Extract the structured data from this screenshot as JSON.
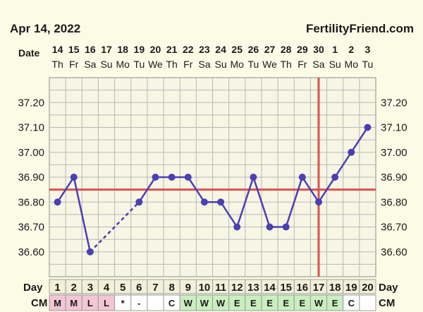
{
  "header": {
    "date": "Apr 14, 2022",
    "brand": "FertilityFriend.com"
  },
  "chart_data": {
    "type": "line",
    "row_labels": {
      "date": "Date",
      "day": "Day",
      "cm": "CM"
    },
    "dates": [
      "14",
      "15",
      "16",
      "17",
      "18",
      "19",
      "20",
      "21",
      "22",
      "23",
      "24",
      "25",
      "26",
      "27",
      "28",
      "29",
      "30",
      "1",
      "2",
      "3"
    ],
    "weekdays": [
      "Th",
      "Fr",
      "Sa",
      "Su",
      "Mo",
      "Tu",
      "We",
      "Th",
      "Fr",
      "Sa",
      "Su",
      "Mo",
      "Tu",
      "We",
      "Th",
      "Fr",
      "Sa",
      "Su",
      "Mo",
      "Tu"
    ],
    "days": [
      "1",
      "2",
      "3",
      "4",
      "5",
      "6",
      "7",
      "8",
      "9",
      "10",
      "11",
      "12",
      "13",
      "14",
      "15",
      "16",
      "17",
      "18",
      "19",
      "20"
    ],
    "cm": [
      "M",
      "M",
      "L",
      "L",
      "*",
      "-",
      "",
      "C",
      "W",
      "W",
      "W",
      "E",
      "E",
      "E",
      "E",
      "E",
      "W",
      "E",
      "C",
      ""
    ],
    "cm_colors": {
      "M": "#f2c6d6",
      "L": "#f2c6d6",
      "W": "#c9eec0",
      "E": "#c9eec0",
      "C": "#ffffff",
      "*": "#ffffff",
      "-": "#ffffff",
      "": "#ffffff"
    },
    "temperatures": [
      36.8,
      36.9,
      36.6,
      null,
      null,
      36.8,
      36.9,
      36.9,
      36.9,
      36.8,
      36.8,
      36.7,
      36.9,
      36.7,
      36.7,
      36.9,
      36.8,
      36.9,
      37.0,
      37.1
    ],
    "yticks": [
      "37.20",
      "37.10",
      "37.00",
      "36.90",
      "36.80",
      "36.70",
      "36.60"
    ],
    "ylim": [
      36.5,
      37.3
    ],
    "coverline": 36.85,
    "ovulation_day": 17,
    "colors": {
      "line": "#4a3fb5",
      "coverline": "#d9534f",
      "grid": "#b8b8b8",
      "background": "#fcfbe6"
    }
  }
}
